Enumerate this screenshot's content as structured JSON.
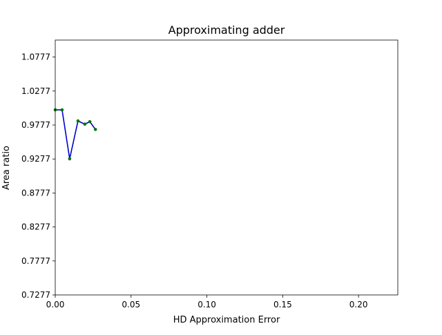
{
  "chart_data": {
    "type": "line",
    "title": "Approximating adder",
    "xlabel": "HD Approximation Error",
    "ylabel": "Area ratio",
    "xlim": [
      0,
      0.2259
    ],
    "ylim": [
      0.7277,
      1.1027
    ],
    "xticks": [
      0.0,
      0.05,
      0.1,
      0.15,
      0.2
    ],
    "xtick_labels": [
      "0.00",
      "0.05",
      "0.10",
      "0.15",
      "0.20"
    ],
    "yticks": [
      0.7277,
      0.7777,
      0.8277,
      0.8777,
      0.9277,
      0.9777,
      1.0277,
      1.0777
    ],
    "ytick_labels": [
      "0.7277",
      "0.7777",
      "0.8277",
      "0.8777",
      "0.9277",
      "0.9777",
      "1.0277",
      "1.0777"
    ],
    "grid": false,
    "series": [
      {
        "line_color": "#0000cc",
        "marker_color": "#007700",
        "x": [
          0.0,
          0.0045,
          0.0095,
          0.015,
          0.0195,
          0.0228,
          0.0265
        ],
        "y": [
          1.0,
          1.0,
          0.928,
          0.9837,
          0.979,
          0.9826,
          0.9712
        ]
      }
    ]
  }
}
